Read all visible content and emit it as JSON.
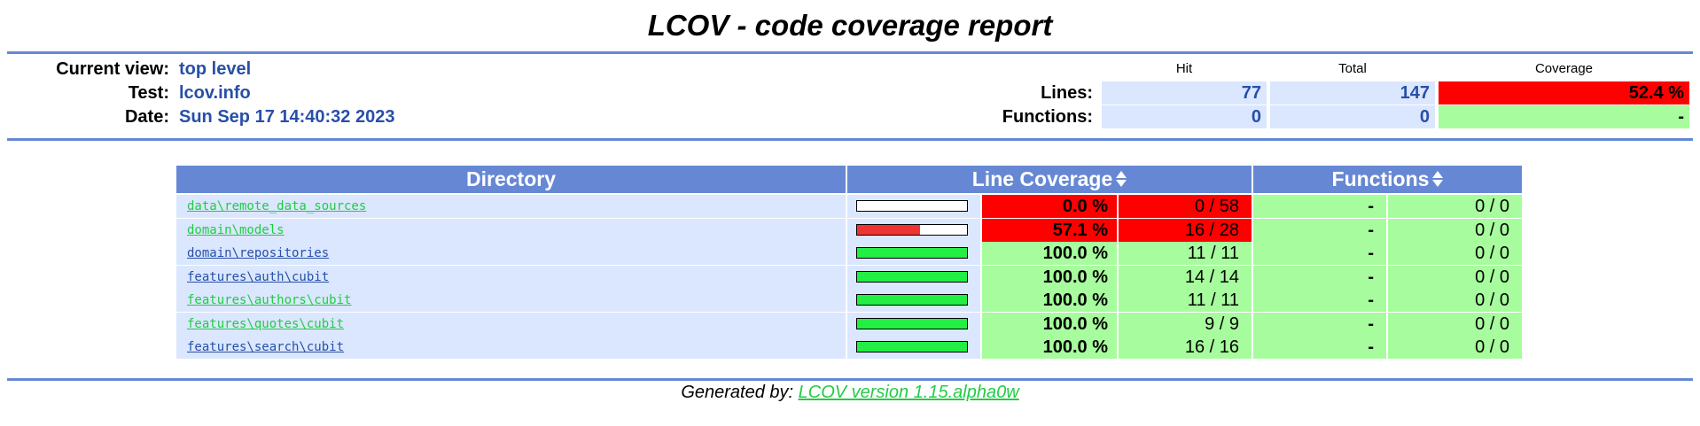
{
  "title": "LCOV - code coverage report",
  "header": {
    "current_view_label": "Current view:",
    "current_view_value": "top level",
    "test_label": "Test:",
    "test_value": "lcov.info",
    "date_label": "Date:",
    "date_value": "Sun Sep 17 14:40:32 2023",
    "col_hit": "Hit",
    "col_total": "Total",
    "col_coverage": "Coverage",
    "lines_label": "Lines:",
    "lines_hit": "77",
    "lines_total": "147",
    "lines_coverage": "52.4 %",
    "functions_label": "Functions:",
    "functions_hit": "0",
    "functions_total": "0",
    "functions_coverage": "-"
  },
  "table": {
    "col_directory": "Directory",
    "col_line_coverage": "Line Coverage",
    "col_functions": "Functions",
    "rows": [
      {
        "name": "data\\remote_data_sources",
        "link_color": "#22cc44",
        "coverage": 0.0,
        "pct": "0.0 %",
        "ratio": "0 / 58",
        "level": "lo",
        "fpct": "-",
        "fratio": "0 / 0"
      },
      {
        "name": "domain\\models",
        "link_color": "#22cc44",
        "coverage": 57.1,
        "pct": "57.1 %",
        "ratio": "16 / 28",
        "level": "lo",
        "fpct": "-",
        "fratio": "0 / 0"
      },
      {
        "name": "domain\\repositories",
        "link_color": "#284fa8",
        "coverage": 100.0,
        "pct": "100.0 %",
        "ratio": "11 / 11",
        "level": "hi",
        "fpct": "-",
        "fratio": "0 / 0"
      },
      {
        "name": "features\\auth\\cubit",
        "link_color": "#284fa8",
        "coverage": 100.0,
        "pct": "100.0 %",
        "ratio": "14 / 14",
        "level": "hi",
        "fpct": "-",
        "fratio": "0 / 0"
      },
      {
        "name": "features\\authors\\cubit",
        "link_color": "#22cc44",
        "coverage": 100.0,
        "pct": "100.0 %",
        "ratio": "11 / 11",
        "level": "hi",
        "fpct": "-",
        "fratio": "0 / 0"
      },
      {
        "name": "features\\quotes\\cubit",
        "link_color": "#22cc44",
        "coverage": 100.0,
        "pct": "100.0 %",
        "ratio": "9 / 9",
        "level": "hi",
        "fpct": "-",
        "fratio": "0 / 0"
      },
      {
        "name": "features\\search\\cubit",
        "link_color": "#284fa8",
        "coverage": 100.0,
        "pct": "100.0 %",
        "ratio": "16 / 16",
        "level": "hi",
        "fpct": "-",
        "fratio": "0 / 0"
      }
    ]
  },
  "colors": {
    "bar_red": "#ee3333",
    "bar_green": "#22ee44"
  },
  "footer": {
    "prefix": "Generated by: ",
    "link": "LCOV version 1.15.alpha0w"
  }
}
